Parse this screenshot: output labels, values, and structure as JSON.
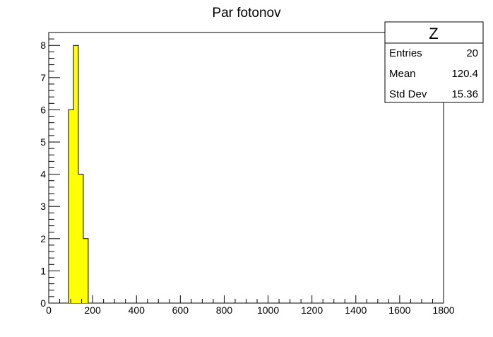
{
  "chart_data": {
    "type": "bar",
    "title": "Par fotonov",
    "xlabel": "",
    "ylabel": "",
    "xlim": [
      0,
      1800
    ],
    "ylim": [
      0,
      8.4
    ],
    "bin_edges": [
      90,
      112.5,
      135,
      157.5,
      180
    ],
    "values": [
      6,
      8,
      4,
      2
    ],
    "x_ticks": [
      0,
      200,
      400,
      600,
      800,
      1000,
      1200,
      1400,
      1600,
      1800
    ],
    "y_ticks": [
      0,
      1,
      2,
      3,
      4,
      5,
      6,
      7,
      8
    ],
    "fill_color": "#ffff00",
    "line_color": "#000000",
    "grid": false,
    "legend": "none"
  },
  "stats_box": {
    "name": "Z",
    "placement": "top-right",
    "rows": [
      {
        "label": "Entries",
        "value": "20"
      },
      {
        "label": "Mean",
        "value": "120.4"
      },
      {
        "label": "Std Dev",
        "value": "15.36"
      }
    ]
  }
}
